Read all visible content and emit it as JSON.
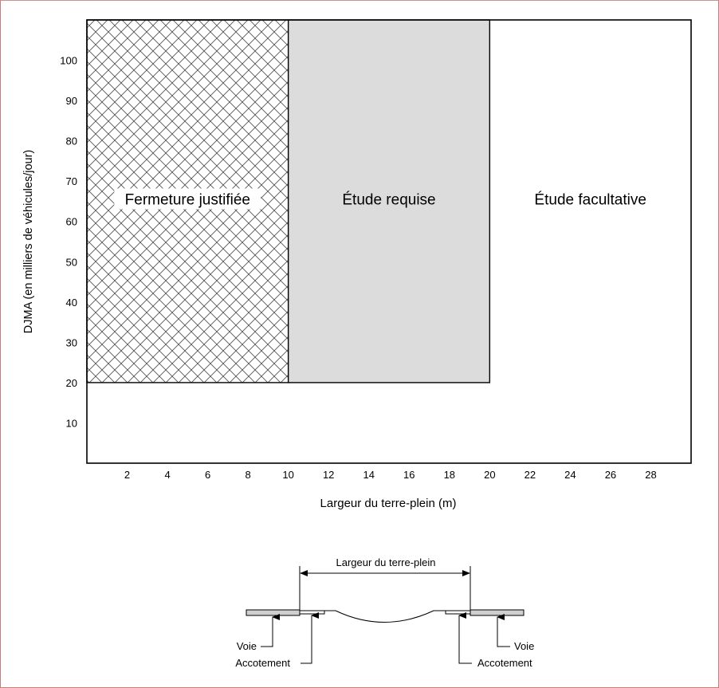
{
  "chart_data": {
    "type": "area",
    "xlabel": "Largeur du terre-plein (m)",
    "ylabel": "DJMA (en milliers de véhicules/jour)",
    "xlim": [
      0,
      30
    ],
    "ylim": [
      0,
      110
    ],
    "xticks": [
      2,
      4,
      6,
      8,
      10,
      12,
      14,
      16,
      18,
      20,
      22,
      24,
      26,
      28
    ],
    "yticks": [
      10,
      20,
      30,
      40,
      50,
      60,
      70,
      80,
      90,
      100
    ],
    "grid": false,
    "regions": [
      {
        "label": "Fermeture justifiée",
        "x": [
          0,
          10
        ],
        "y": [
          20,
          110
        ],
        "fill": "crosshatch",
        "color": "#555555"
      },
      {
        "label": "Étude requise",
        "x": [
          10,
          20
        ],
        "y": [
          20,
          110
        ],
        "fill": "solid",
        "color": "#dcdcdc"
      },
      {
        "label": "Étude facultative",
        "x": [
          20,
          30
        ],
        "y": [
          0,
          110
        ],
        "fill": "none",
        "color": "#ffffff"
      }
    ]
  },
  "diagram": {
    "width_label": "Largeur du terre-plein",
    "left_lane": "Voie",
    "left_shoulder": "Accotement",
    "right_lane": "Voie",
    "right_shoulder": "Accotement"
  },
  "colors": {
    "border": "#c97a7a",
    "lane_fill": "#cfcfcf",
    "axis": "#000000"
  }
}
